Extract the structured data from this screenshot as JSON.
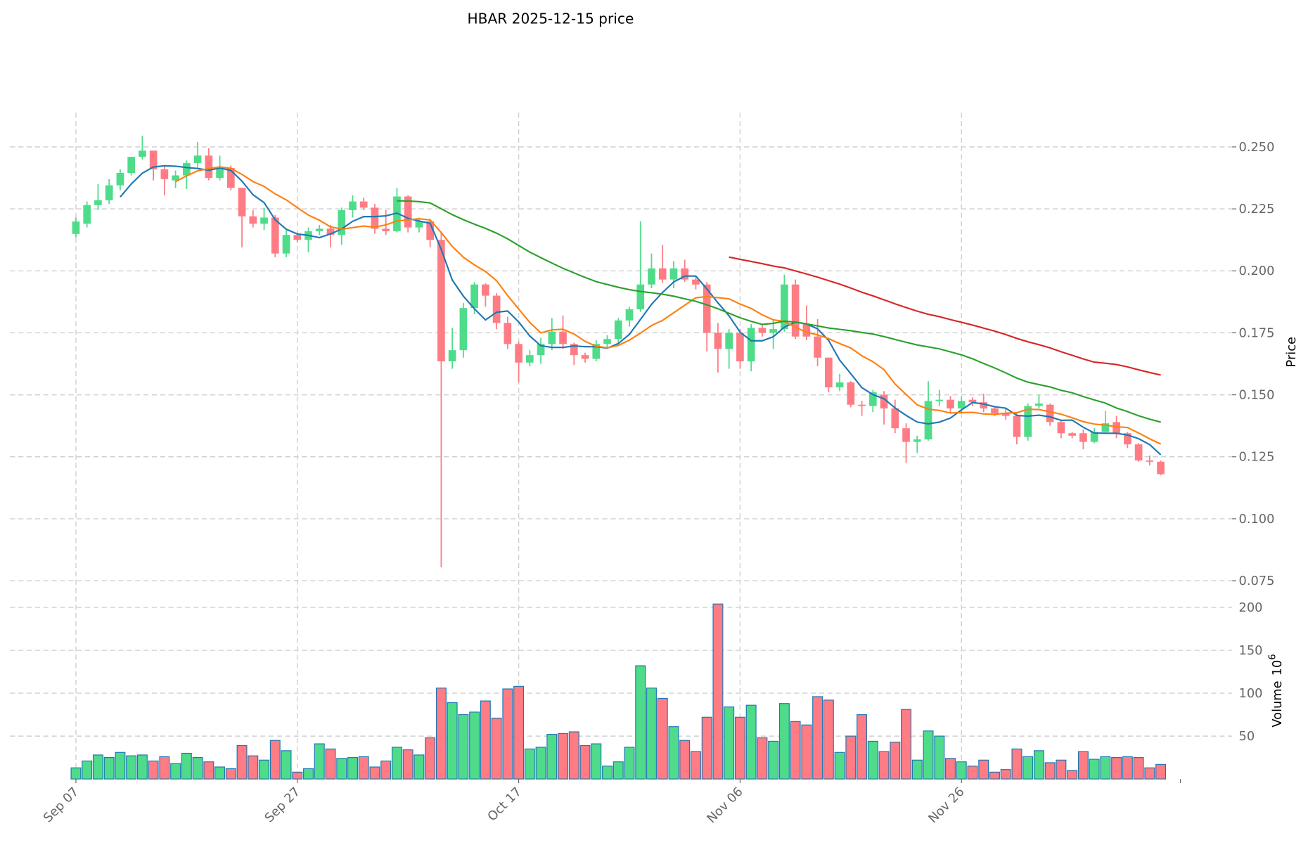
{
  "chart_data": {
    "type": "candlestick",
    "title": "HBAR  2025-12-15  price",
    "ylabel": "Price",
    "volume_label": "Volume",
    "volume_exponent": "10",
    "volume_exponent_power": "6",
    "start_date": "2025-09-07",
    "x_ticks": [
      {
        "index": 0,
        "label": "Sep 07"
      },
      {
        "index": 20,
        "label": "Sep 27"
      },
      {
        "index": 40,
        "label": "Oct 17"
      },
      {
        "index": 60,
        "label": "Nov 06"
      },
      {
        "index": 80,
        "label": "Nov 26"
      }
    ],
    "price_ticks": [
      "0.075",
      "0.100",
      "0.125",
      "0.150",
      "0.175",
      "0.200",
      "0.225",
      "0.250"
    ],
    "volume_ticks": [
      "50",
      "100",
      "150",
      "200"
    ],
    "ylim": [
      0.0697,
      0.2638
    ],
    "volume_ylim": [
      0,
      210
    ],
    "grid": true,
    "colors": {
      "up": "#4fdc8a",
      "down": "#ff7c84",
      "volume_edge": "#1f77b4",
      "ma5": "#1f77b4",
      "ma10": "#ff7f0e",
      "ma30": "#2ca02c",
      "ma60": "#d62728"
    },
    "moving_averages": [
      5,
      10,
      30,
      60
    ],
    "open": [
      0.2149,
      0.219,
      0.2265,
      0.2285,
      0.2345,
      0.2395,
      0.246,
      0.2485,
      0.241,
      0.2365,
      0.2385,
      0.2435,
      0.2465,
      0.2375,
      0.2415,
      0.2335,
      0.222,
      0.219,
      0.2215,
      0.207,
      0.2145,
      0.2125,
      0.216,
      0.217,
      0.2145,
      0.2245,
      0.228,
      0.2255,
      0.217,
      0.216,
      0.23,
      0.2175,
      0.22,
      0.2125,
      0.1635,
      0.168,
      0.185,
      0.1945,
      0.19,
      0.179,
      0.1705,
      0.163,
      0.166,
      0.1705,
      0.1755,
      0.1705,
      0.166,
      0.1645,
      0.1705,
      0.1725,
      0.18,
      0.1845,
      0.1945,
      0.201,
      0.1965,
      0.201,
      0.1965,
      0.1945,
      0.175,
      0.1685,
      0.175,
      0.1635,
      0.177,
      0.175,
      0.1765,
      0.1945,
      0.1785,
      0.1735,
      0.165,
      0.153,
      0.155,
      0.146,
      0.1455,
      0.15,
      0.1445,
      0.1365,
      0.131,
      0.132,
      0.1475,
      0.148,
      0.1445,
      0.148,
      0.147,
      0.1445,
      0.1425,
      0.1415,
      0.133,
      0.1455,
      0.146,
      0.139,
      0.1345,
      0.1345,
      0.131,
      0.135,
      0.139,
      0.1345,
      0.13,
      0.1235,
      0.123
    ],
    "high": [
      0.2215,
      0.228,
      0.235,
      0.237,
      0.241,
      0.246,
      0.2545,
      0.2485,
      0.2425,
      0.2405,
      0.2445,
      0.252,
      0.2495,
      0.2465,
      0.2425,
      0.2335,
      0.2245,
      0.2255,
      0.2225,
      0.2165,
      0.2155,
      0.2175,
      0.2185,
      0.2185,
      0.2255,
      0.2305,
      0.2295,
      0.227,
      0.2245,
      0.2335,
      0.2305,
      0.2215,
      0.221,
      0.2155,
      0.177,
      0.187,
      0.1955,
      0.195,
      0.191,
      0.1815,
      0.1715,
      0.168,
      0.173,
      0.181,
      0.182,
      0.171,
      0.167,
      0.172,
      0.174,
      0.181,
      0.1855,
      0.22,
      0.207,
      0.2105,
      0.204,
      0.2045,
      0.198,
      0.1955,
      0.179,
      0.1765,
      0.1765,
      0.1785,
      0.1785,
      0.18,
      0.1985,
      0.1965,
      0.186,
      0.1805,
      0.165,
      0.1585,
      0.1555,
      0.1475,
      0.152,
      0.1515,
      0.148,
      0.1385,
      0.1335,
      0.1555,
      0.152,
      0.1495,
      0.1495,
      0.149,
      0.1505,
      0.1455,
      0.1445,
      0.1425,
      0.1465,
      0.15,
      0.1465,
      0.14,
      0.135,
      0.136,
      0.1365,
      0.1435,
      0.1415,
      0.135,
      0.1305,
      0.1255,
      0.1235
    ],
    "low": [
      0.2135,
      0.2175,
      0.2245,
      0.227,
      0.2325,
      0.2385,
      0.245,
      0.2365,
      0.2305,
      0.2335,
      0.233,
      0.2415,
      0.2365,
      0.2365,
      0.2325,
      0.2095,
      0.2175,
      0.2165,
      0.2055,
      0.2055,
      0.2115,
      0.2075,
      0.2145,
      0.2095,
      0.2105,
      0.2215,
      0.2245,
      0.215,
      0.2145,
      0.2155,
      0.2155,
      0.2155,
      0.2095,
      0.0804,
      0.1605,
      0.165,
      0.1825,
      0.1855,
      0.1765,
      0.1685,
      0.155,
      0.1615,
      0.1625,
      0.168,
      0.1685,
      0.162,
      0.163,
      0.1635,
      0.169,
      0.171,
      0.1775,
      0.1835,
      0.193,
      0.195,
      0.193,
      0.1955,
      0.1925,
      0.1675,
      0.159,
      0.1605,
      0.1605,
      0.1595,
      0.1735,
      0.1685,
      0.1755,
      0.1725,
      0.172,
      0.1615,
      0.151,
      0.1515,
      0.145,
      0.1415,
      0.143,
      0.138,
      0.1345,
      0.1225,
      0.1265,
      0.1315,
      0.1455,
      0.1425,
      0.1425,
      0.1455,
      0.143,
      0.1415,
      0.14,
      0.13,
      0.1315,
      0.1445,
      0.1375,
      0.1325,
      0.1325,
      0.128,
      0.1305,
      0.1345,
      0.1325,
      0.1285,
      0.123,
      0.1215,
      0.1175
    ],
    "close": [
      0.2199,
      0.2265,
      0.2285,
      0.2345,
      0.2395,
      0.246,
      0.2485,
      0.241,
      0.237,
      0.2385,
      0.2435,
      0.2465,
      0.2375,
      0.2415,
      0.2335,
      0.222,
      0.219,
      0.2215,
      0.207,
      0.2145,
      0.2125,
      0.216,
      0.217,
      0.2145,
      0.2245,
      0.228,
      0.2255,
      0.217,
      0.216,
      0.23,
      0.2175,
      0.22,
      0.2125,
      0.1635,
      0.168,
      0.185,
      0.1945,
      0.19,
      0.179,
      0.1705,
      0.163,
      0.166,
      0.1705,
      0.1755,
      0.1705,
      0.166,
      0.1645,
      0.1705,
      0.1725,
      0.18,
      0.1845,
      0.1945,
      0.201,
      0.1965,
      0.201,
      0.1965,
      0.1945,
      0.175,
      0.1685,
      0.175,
      0.1635,
      0.177,
      0.175,
      0.1765,
      0.1945,
      0.1735,
      0.1735,
      0.165,
      0.153,
      0.155,
      0.146,
      0.1455,
      0.151,
      0.1445,
      0.1365,
      0.131,
      0.132,
      0.1475,
      0.148,
      0.1445,
      0.1475,
      0.147,
      0.1445,
      0.1425,
      0.1415,
      0.133,
      0.1455,
      0.1465,
      0.139,
      0.1345,
      0.1335,
      0.131,
      0.135,
      0.1385,
      0.1345,
      0.13,
      0.1235,
      0.123,
      0.118
    ],
    "volume": [
      13,
      21,
      28,
      25,
      31,
      27,
      28,
      21,
      26,
      18,
      30,
      25,
      20,
      14,
      12,
      39,
      27,
      22,
      45,
      33,
      8,
      12,
      41,
      35,
      24,
      25,
      26,
      14,
      21,
      37,
      34,
      28,
      48,
      106,
      89,
      75,
      78,
      91,
      71,
      105,
      108,
      35,
      37,
      52,
      53,
      55,
      39,
      41,
      15,
      20,
      37,
      132,
      106,
      94,
      61,
      45,
      32,
      72,
      204,
      84,
      72,
      86,
      48,
      44,
      88,
      67,
      63,
      96,
      92,
      31,
      50,
      75,
      44,
      32,
      43,
      81,
      22,
      56,
      50,
      24,
      20,
      15,
      22,
      8,
      11,
      35,
      26,
      33,
      19,
      22,
      10,
      32,
      23,
      26,
      25,
      26,
      25,
      13,
      17
    ]
  }
}
